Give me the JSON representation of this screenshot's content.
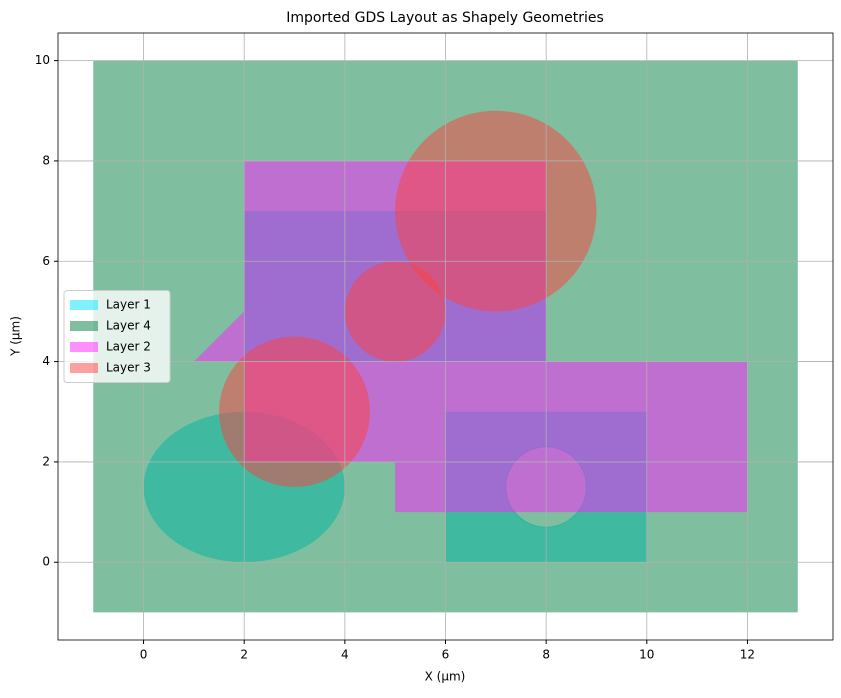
{
  "chart_data": {
    "type": "shapes",
    "title": "Imported GDS Layout as Shapely Geometries",
    "x_label": "X (µm)",
    "y_label": "Y (µm)",
    "xlim": [
      -1.7,
      13.7
    ],
    "ylim": [
      -1.55,
      10.55
    ],
    "xticks": [
      0,
      2,
      4,
      6,
      8,
      10,
      12
    ],
    "yticks": [
      0,
      2,
      4,
      6,
      8,
      10
    ],
    "grid": true,
    "legend": "center left",
    "alpha": 0.5,
    "series": [
      {
        "name": "Layer 1",
        "color": "#00e5ff",
        "shapes": [
          {
            "kind": "ellipse",
            "cx": 2,
            "cy": 1.5,
            "rx": 2,
            "ry": 1.5
          },
          {
            "kind": "polygon",
            "points": [
              [
                2,
                4
              ],
              [
                8,
                4
              ],
              [
                8,
                7
              ],
              [
                2,
                7
              ]
            ]
          },
          {
            "kind": "polygon",
            "points": [
              [
                6,
                0
              ],
              [
                10,
                0
              ],
              [
                10,
                3
              ],
              [
                6,
                3
              ]
            ],
            "holes": [
              {
                "cx": 8,
                "cy": 1.5,
                "r": 0.8
              }
            ]
          }
        ]
      },
      {
        "name": "Layer 4",
        "color": "#00803f",
        "shapes": [
          {
            "kind": "polygon",
            "points": [
              [
                -1,
                -1
              ],
              [
                13,
                -1
              ],
              [
                13,
                10
              ],
              [
                -1,
                10
              ]
            ]
          }
        ]
      },
      {
        "name": "Layer 2",
        "color": "#ff1fff",
        "shapes": [
          {
            "kind": "polygon",
            "points": [
              [
                1,
                4
              ],
              [
                2,
                4
              ],
              [
                2,
                2
              ],
              [
                5,
                2
              ],
              [
                5,
                1
              ],
              [
                12,
                1
              ],
              [
                12,
                4
              ],
              [
                8,
                4
              ],
              [
                8,
                8
              ],
              [
                2,
                8
              ],
              [
                2,
                5
              ]
            ]
          }
        ]
      },
      {
        "name": "Layer 3",
        "color": "#ff4040",
        "shapes": [
          {
            "kind": "circle",
            "cx": 7,
            "cy": 7,
            "r": 2
          },
          {
            "kind": "circle",
            "cx": 5,
            "cy": 5,
            "r": 1
          },
          {
            "kind": "circle",
            "cx": 3,
            "cy": 3,
            "r": 1.5
          }
        ]
      }
    ]
  }
}
